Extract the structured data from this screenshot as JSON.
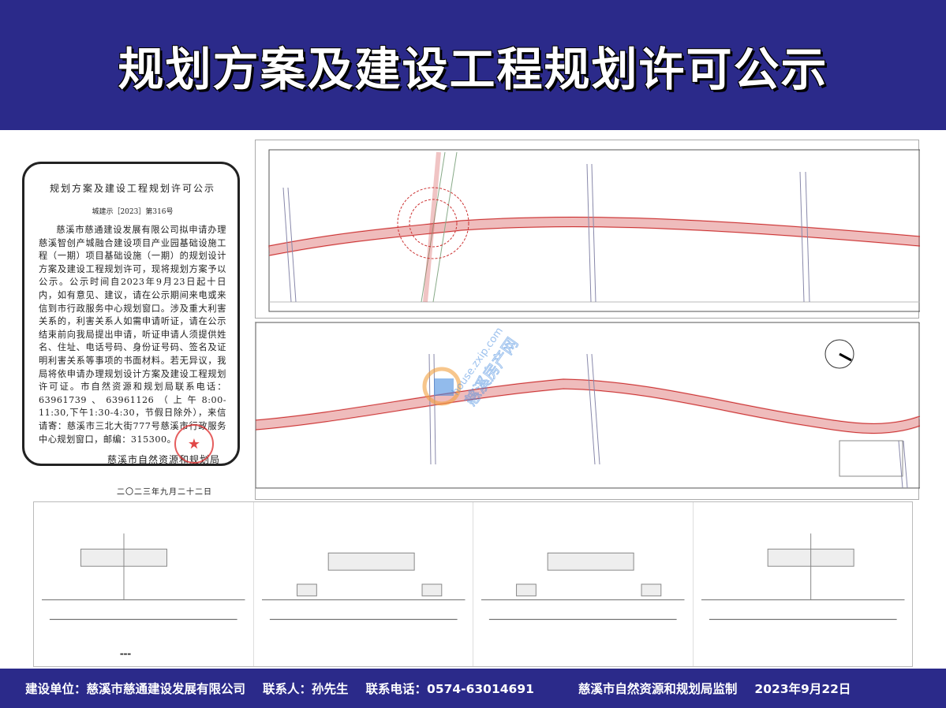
{
  "header": {
    "title": "规划方案及建设工程规划许可公示"
  },
  "notice": {
    "title": "规划方案及建设工程规划许可公示",
    "doc_no": "城建示［2023］第316号",
    "body": "慈溪市慈通建设发展有限公司拟申请办理慈溪智创产城融合建设项目产业园基础设施工程（一期）项目基础设施（一期）的规划设计方案及建设工程规划许可，现将规划方案予以公示。公示时间自2023年9月23日起十日内，如有意见、建议，请在公示期间来电或来信到市行政服务中心规划窗口。涉及重大利害关系的，利害关系人如需申请听证，请在公示结束前向我局提出申请，听证申请人须提供姓名、住址、电话号码、身份证号码、签名及证明利害关系等事项的书面材料。若无异议，我局将依申请办理规划设计方案及建设工程规划许可证。市自然资源和规划局联系电话：63961739、63961126（上午8:00-11:30,下午1:30-4:30，节假日除外），来信请寄：慈溪市三北大街777号慈溪市行政服务中心规划窗口，邮编：315300。",
    "signature": "慈溪市自然资源和规划局",
    "date": "二〇二三年九月二十二日",
    "seal_color": "#dc2828"
  },
  "watermark": {
    "text": "house.zxip.com 慈溪房产网"
  },
  "footer": {
    "builder": "建设单位：慈溪市慈通建设发展有限公司",
    "contact": "联系人：孙先生",
    "phone": "联系电话：0574-63014691",
    "supervisor": "慈溪市自然资源和规划局监制",
    "date": "2023年9月22日"
  },
  "colors": {
    "banner": "#2b2a8a",
    "road_line": "#d04040",
    "road_fill": "#dfeee0"
  }
}
